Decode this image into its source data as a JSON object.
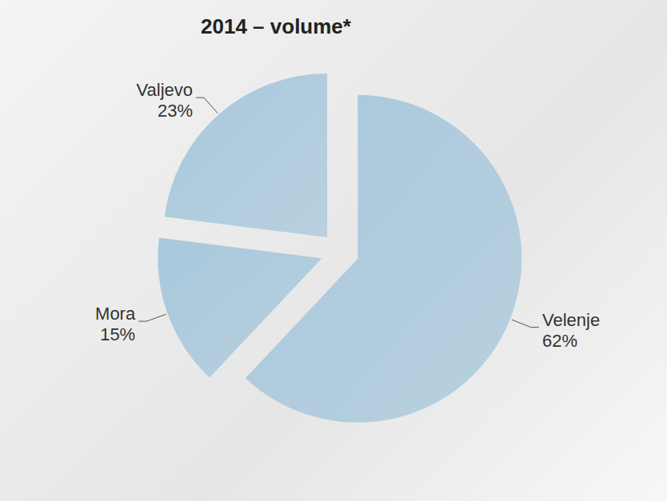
{
  "chart_data": {
    "type": "pie",
    "title": "2014 – volume*",
    "categories": [
      "Velenje",
      "Mora",
      "Valjevo"
    ],
    "values": [
      62,
      15,
      23
    ],
    "value_labels": [
      "62%",
      "15%",
      "23%"
    ],
    "color": "#a8c8dc",
    "data_labels": true
  }
}
